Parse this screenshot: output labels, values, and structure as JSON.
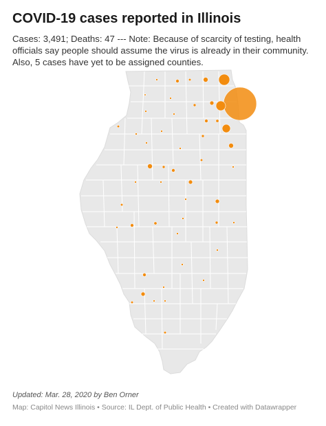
{
  "header": {
    "title": "COVID-19 cases reported in Illinois",
    "description": "Cases: 3,491; Deaths: 47 --- Note: Because of scarcity of testing, health officials say people should assume the virus is already in their community. Also, 5 cases have yet to be assigned counties."
  },
  "footer": {
    "updated": "Updated: Mar. 28, 2020 by Ben Orner",
    "source": "Map: Capitol News Illinois • Source: IL Dept. of Public Health • Created with Datawrapper"
  },
  "colors": {
    "state_fill": "#e8e8e8",
    "county_border": "#ffffff",
    "symbol": "#f28c0f"
  }
}
